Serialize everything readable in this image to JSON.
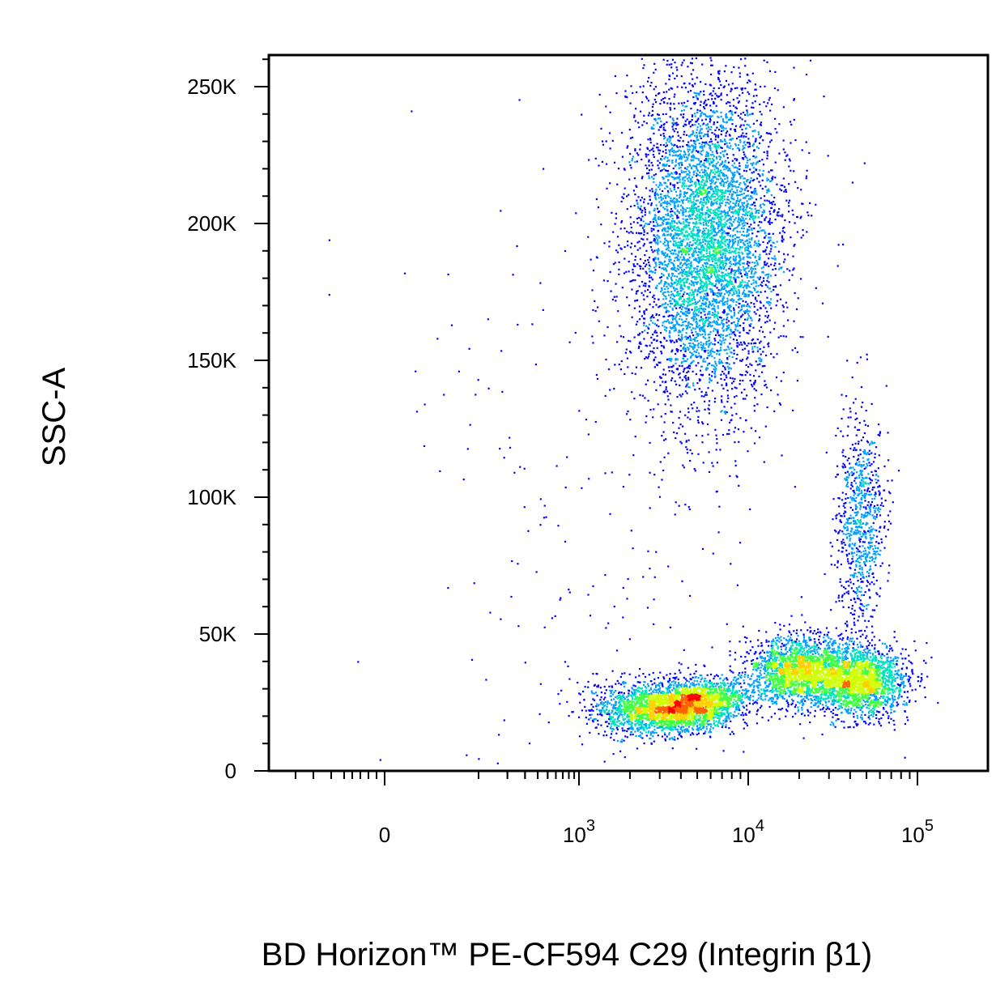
{
  "chart_data": {
    "type": "scatter",
    "style": "density-colored flow cytometry dot plot",
    "xlabel": "BD Horizon™ PE-CF594 C29 (Integrin β1)",
    "ylabel": "SSC-A",
    "x_scale": "biexponential (logicle)",
    "y_scale": "linear",
    "ylim": [
      0,
      260000
    ],
    "xlim": [
      -600,
      160000
    ],
    "grid": false,
    "legend": "none",
    "y_ticks": [
      {
        "value": 0,
        "label": "0"
      },
      {
        "value": 50000,
        "label": "50K"
      },
      {
        "value": 100000,
        "label": "100K"
      },
      {
        "value": 150000,
        "label": "150K"
      },
      {
        "value": 200000,
        "label": "200K"
      },
      {
        "value": 250000,
        "label": "250K"
      }
    ],
    "x_ticks": [
      {
        "value": 0,
        "base": "0",
        "exp": ""
      },
      {
        "value": 1000,
        "base": "10",
        "exp": "3"
      },
      {
        "value": 10000,
        "base": "10",
        "exp": "4"
      },
      {
        "value": 100000,
        "base": "10",
        "exp": "5"
      }
    ],
    "density_colors": [
      "#0000ff",
      "#00a0ff",
      "#00e0c0",
      "#40ff40",
      "#d0ff00",
      "#ffd000",
      "#ff6000",
      "#ff0000"
    ],
    "populations": [
      {
        "x_center": 5500,
        "y_center": 195000,
        "x_spread_decades": 0.22,
        "y_sd": 30000,
        "weight": 0.4,
        "rotation": 0.0
      },
      {
        "x_center": 4200,
        "y_center": 24000,
        "x_spread_decades": 0.18,
        "y_sd": 4500,
        "weight": 0.2,
        "rotation": 0.12
      },
      {
        "x_center": 20000,
        "y_center": 37000,
        "x_spread_decades": 0.15,
        "y_sd": 6000,
        "weight": 0.14,
        "rotation": 0.0
      },
      {
        "x_center": 45000,
        "y_center": 33000,
        "x_spread_decades": 0.14,
        "y_sd": 6500,
        "weight": 0.14,
        "rotation": 0.0
      },
      {
        "x_center": 45000,
        "y_center": 90000,
        "x_spread_decades": 0.07,
        "y_sd": 20000,
        "weight": 0.06,
        "rotation": 0.0
      },
      {
        "x_center": 2000,
        "y_center": 24000,
        "x_spread_decades": 0.15,
        "y_sd": 5000,
        "weight": 0.04,
        "rotation": 0.0
      },
      {
        "x_center": 1500,
        "y_center": 100000,
        "x_spread_decades": 0.6,
        "y_sd": 80000,
        "weight": 0.02,
        "rotation": 0.0
      }
    ]
  }
}
